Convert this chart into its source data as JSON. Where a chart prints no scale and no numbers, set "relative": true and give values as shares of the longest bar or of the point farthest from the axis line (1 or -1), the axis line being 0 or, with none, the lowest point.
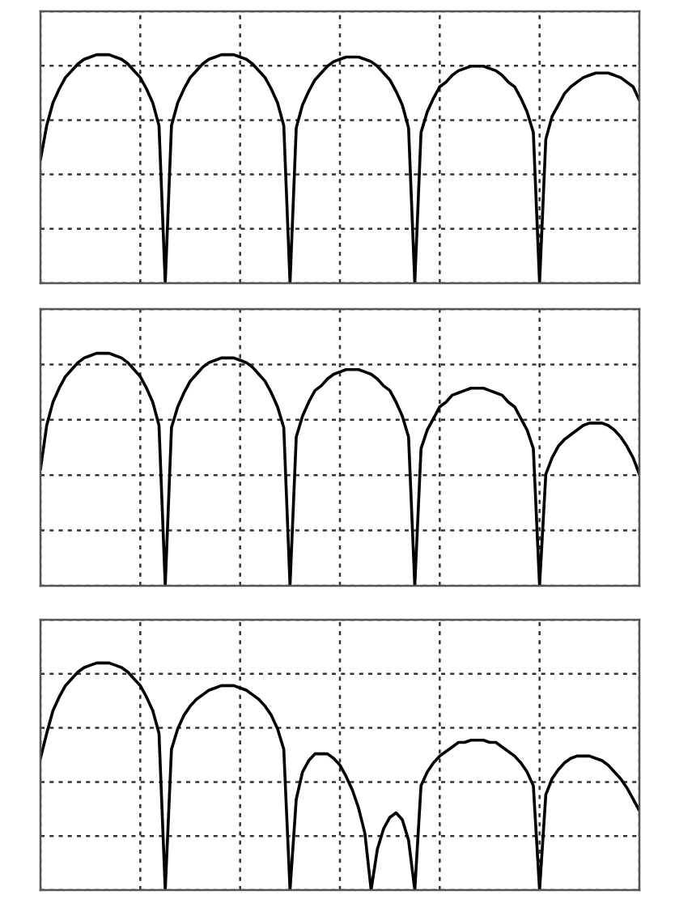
{
  "chart_data": [
    {
      "type": "line",
      "relative": true,
      "grid": true,
      "color": "#000000",
      "categories": [
        null,
        null,
        null,
        null,
        null,
        null,
        null,
        null,
        null,
        null,
        null,
        null,
        null,
        null,
        null,
        null,
        null,
        null,
        null,
        null,
        null,
        null,
        null,
        null,
        null,
        null,
        null,
        null,
        null,
        null,
        null,
        null,
        null,
        null,
        null,
        null,
        null,
        null,
        null,
        null,
        null,
        null,
        null,
        null,
        null,
        null,
        null,
        null,
        null,
        null,
        null,
        null,
        null,
        null,
        null,
        null,
        null,
        null,
        null,
        null,
        null,
        null,
        null,
        null,
        null,
        null,
        null,
        null,
        null,
        null,
        null,
        null,
        null,
        null,
        null,
        null,
        null,
        null,
        null,
        null,
        null,
        null,
        null,
        null,
        null,
        null,
        null,
        null,
        null,
        null,
        null,
        null,
        null,
        null,
        null,
        null,
        null
      ],
      "values": [
        0.54,
        0.69,
        0.79,
        0.85,
        0.9,
        0.93,
        0.96,
        0.98,
        0.99,
        1,
        1,
        1,
        0.99,
        0.98,
        0.96,
        0.93,
        0.9,
        0.85,
        0.79,
        0.69,
        0,
        0.69,
        0.79,
        0.85,
        0.9,
        0.93,
        0.96,
        0.98,
        0.99,
        1,
        1,
        1,
        0.99,
        0.98,
        0.96,
        0.93,
        0.9,
        0.85,
        0.79,
        0.69,
        0,
        0.68,
        0.78,
        0.84,
        0.89,
        0.92,
        0.95,
        0.97,
        0.98,
        0.99,
        0.99,
        0.99,
        0.98,
        0.97,
        0.95,
        0.92,
        0.89,
        0.84,
        0.78,
        0.68,
        0,
        0.66,
        0.75,
        0.81,
        0.86,
        0.88,
        0.91,
        0.93,
        0.94,
        0.95,
        0.95,
        0.95,
        0.94,
        0.93,
        0.91,
        0.88,
        0.86,
        0.81,
        0.75,
        0.66,
        0,
        0.63,
        0.73,
        0.78,
        0.83,
        0.86,
        0.88,
        0.9,
        0.91,
        0.92,
        0.92,
        0.92,
        0.91,
        0.9,
        0.88,
        0.86,
        0.8
      ]
    },
    {
      "type": "line",
      "relative": true,
      "grid": true,
      "color": "#000000",
      "categories": [
        null,
        null,
        null,
        null,
        null,
        null,
        null,
        null,
        null,
        null,
        null,
        null,
        null,
        null,
        null,
        null,
        null,
        null,
        null,
        null,
        null,
        null,
        null,
        null,
        null,
        null,
        null,
        null,
        null,
        null,
        null,
        null,
        null,
        null,
        null,
        null,
        null,
        null,
        null,
        null,
        null,
        null,
        null,
        null,
        null,
        null,
        null,
        null,
        null,
        null,
        null,
        null,
        null,
        null,
        null,
        null,
        null,
        null,
        null,
        null,
        null,
        null,
        null,
        null,
        null,
        null,
        null,
        null,
        null,
        null,
        null,
        null,
        null,
        null,
        null,
        null,
        null,
        null,
        null,
        null,
        null,
        null,
        null,
        null,
        null,
        null,
        null,
        null,
        null,
        null,
        null,
        null,
        null,
        null,
        null,
        null,
        null
      ],
      "values": [
        0.5,
        0.69,
        0.79,
        0.85,
        0.9,
        0.93,
        0.96,
        0.98,
        0.99,
        1,
        1,
        1,
        0.99,
        0.98,
        0.96,
        0.93,
        0.9,
        0.85,
        0.79,
        0.69,
        0,
        0.68,
        0.77,
        0.83,
        0.88,
        0.91,
        0.94,
        0.96,
        0.97,
        0.98,
        0.98,
        0.98,
        0.97,
        0.96,
        0.94,
        0.91,
        0.88,
        0.83,
        0.77,
        0.68,
        0,
        0.64,
        0.73,
        0.79,
        0.84,
        0.86,
        0.89,
        0.91,
        0.92,
        0.93,
        0.93,
        0.93,
        0.92,
        0.91,
        0.89,
        0.86,
        0.84,
        0.79,
        0.73,
        0.64,
        0,
        0.59,
        0.67,
        0.72,
        0.77,
        0.79,
        0.82,
        0.83,
        0.84,
        0.85,
        0.85,
        0.85,
        0.84,
        0.83,
        0.82,
        0.79,
        0.77,
        0.72,
        0.67,
        0.59,
        0,
        0.48,
        0.55,
        0.6,
        0.63,
        0.65,
        0.67,
        0.69,
        0.7,
        0.7,
        0.7,
        0.69,
        0.67,
        0.64,
        0.6,
        0.55,
        0.48
      ]
    },
    {
      "type": "line",
      "relative": true,
      "grid": true,
      "color": "#000000",
      "categories": [
        null,
        null,
        null,
        null,
        null,
        null,
        null,
        null,
        null,
        null,
        null,
        null,
        null,
        null,
        null,
        null,
        null,
        null,
        null,
        null,
        null,
        null,
        null,
        null,
        null,
        null,
        null,
        null,
        null,
        null,
        null,
        null,
        null,
        null,
        null,
        null,
        null,
        null,
        null,
        null,
        null,
        null,
        null,
        null,
        null,
        null,
        null,
        null,
        null,
        null,
        null,
        null,
        null,
        null,
        null,
        null,
        null,
        null,
        null,
        null,
        null,
        null,
        null,
        null,
        null,
        null,
        null,
        null,
        null,
        null,
        null,
        null,
        null,
        null,
        null,
        null,
        null,
        null,
        null,
        null,
        null,
        null,
        null,
        null,
        null,
        null,
        null,
        null,
        null,
        null,
        null,
        null,
        null,
        null,
        null,
        null,
        null
      ],
      "values": [
        0.58,
        0.69,
        0.79,
        0.85,
        0.9,
        0.93,
        0.96,
        0.98,
        0.99,
        1,
        1,
        1,
        0.99,
        0.98,
        0.96,
        0.93,
        0.9,
        0.85,
        0.79,
        0.69,
        0,
        0.62,
        0.71,
        0.77,
        0.81,
        0.84,
        0.86,
        0.88,
        0.89,
        0.9,
        0.9,
        0.9,
        0.89,
        0.88,
        0.86,
        0.84,
        0.81,
        0.77,
        0.71,
        0.62,
        0,
        0.4,
        0.52,
        0.57,
        0.6,
        0.6,
        0.6,
        0.58,
        0.55,
        0.5,
        0.44,
        0.36,
        0.25,
        0,
        0.18,
        0.27,
        0.32,
        0.34,
        0.31,
        0.22,
        0,
        0.46,
        0.52,
        0.56,
        0.59,
        0.61,
        0.63,
        0.65,
        0.65,
        0.66,
        0.66,
        0.66,
        0.65,
        0.65,
        0.63,
        0.61,
        0.59,
        0.56,
        0.52,
        0.46,
        0,
        0.42,
        0.49,
        0.53,
        0.56,
        0.58,
        0.59,
        0.59,
        0.59,
        0.58,
        0.57,
        0.55,
        0.52,
        0.49,
        0.45,
        0.4,
        0.35
      ]
    }
  ]
}
